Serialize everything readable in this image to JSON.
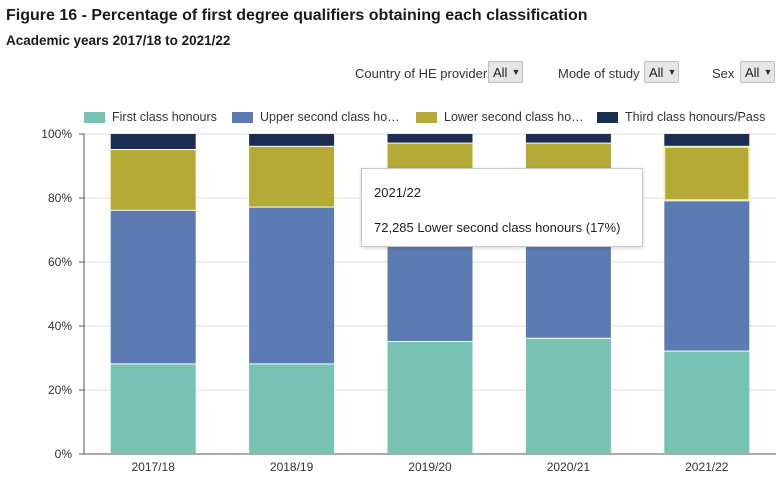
{
  "header": {
    "title": "Figure 16 - Percentage of first degree qualifiers obtaining each classification",
    "subtitle": "Academic years 2017/18 to 2021/22"
  },
  "filters": {
    "country": {
      "label": "Country of HE provider",
      "value": "All"
    },
    "mode": {
      "label": "Mode of study",
      "value": "All"
    },
    "sex": {
      "label": "Sex",
      "value": "All"
    }
  },
  "legend": [
    {
      "label": "First class honours",
      "color": "#78c2b3"
    },
    {
      "label": "Upper second class ho…",
      "color": "#5b7bb2"
    },
    {
      "label": "Lower second class ho…",
      "color": "#b5aa36"
    },
    {
      "label": "Third class honours/Pass",
      "color": "#1c2d52"
    }
  ],
  "tooltip": {
    "year": "2021/22",
    "value": "72,285 Lower second class honours (17%)"
  },
  "chart_data": {
    "type": "bar",
    "stacked": true,
    "categories": [
      "2017/18",
      "2018/19",
      "2019/20",
      "2020/21",
      "2021/22"
    ],
    "series": [
      {
        "name": "First class honours",
        "color": "#78c2b3",
        "values": [
          28,
          28,
          35,
          36,
          32
        ]
      },
      {
        "name": "Upper second class honours",
        "color": "#5b7bb2",
        "values": [
          48,
          49,
          48,
          47,
          47
        ]
      },
      {
        "name": "Lower second class honours",
        "color": "#b5aa36",
        "values": [
          19,
          19,
          14,
          14,
          17
        ]
      },
      {
        "name": "Third class honours/Pass",
        "color": "#1c2d52",
        "values": [
          5,
          4,
          3,
          3,
          4
        ]
      }
    ],
    "ylim": [
      0,
      100
    ],
    "yticks": [
      "0%",
      "20%",
      "40%",
      "60%",
      "80%",
      "100%"
    ],
    "ytick_values": [
      0,
      20,
      40,
      60,
      80,
      100
    ],
    "highlight": {
      "category": "2021/22",
      "series": "Lower second class honours"
    },
    "grid": true
  }
}
